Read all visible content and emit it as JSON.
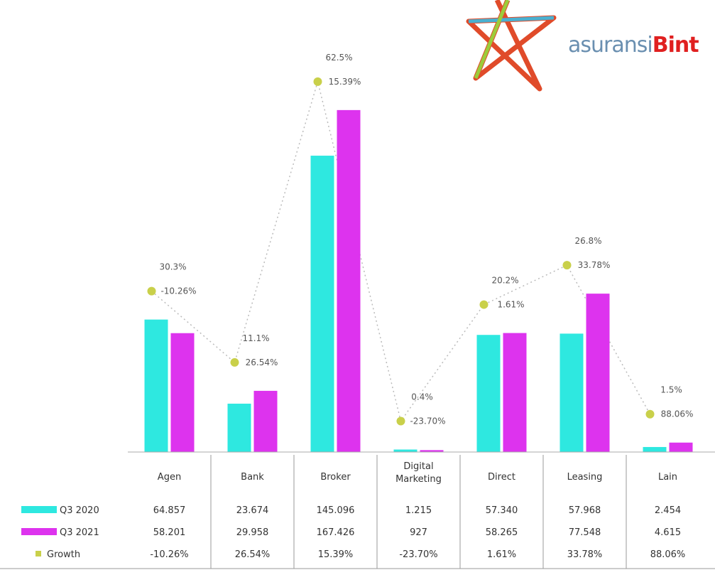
{
  "brand": {
    "logo_text_part1": "asuransi",
    "logo_text_part2": "Bint"
  },
  "chart_data": {
    "type": "bar",
    "title": "",
    "xlabel": "",
    "ylabel": "",
    "categories": [
      "Agen",
      "Bank",
      "Broker",
      "Digital Marketing",
      "Direct",
      "Leasing",
      "Lain"
    ],
    "series": [
      {
        "name": "Q3 2020",
        "color": "#2ee8e0",
        "display": [
          "64.857",
          "23.674",
          "145.096",
          "1.215",
          "57.340",
          "57.968",
          "2.454"
        ],
        "values": [
          64857,
          23674,
          145096,
          1215,
          57340,
          57968,
          2454
        ]
      },
      {
        "name": "Q3 2021",
        "color": "#dd33ee",
        "display": [
          "58.201",
          "29.958",
          "167.426",
          "927",
          "58.265",
          "77.548",
          "4.615"
        ],
        "values": [
          58201,
          29958,
          167426,
          927,
          58265,
          77548,
          4615
        ]
      },
      {
        "name": "Growth",
        "color": "#c9d04a",
        "display": [
          "-10.26%",
          "26.54%",
          "15.39%",
          "-23.70%",
          "1.61%",
          "33.78%",
          "88.06%"
        ],
        "values": [
          -10.26,
          26.54,
          15.39,
          -23.7,
          1.61,
          33.78,
          88.06
        ]
      }
    ],
    "annotations": [
      {
        "category": "Agen",
        "share": "30.3%",
        "growth": "-10.26%"
      },
      {
        "category": "Bank",
        "share": "11.1%",
        "growth": "26.54%"
      },
      {
        "category": "Broker",
        "share": "62.5%",
        "growth": "15.39%"
      },
      {
        "category": "Digital Marketing",
        "share": "0.4%",
        "growth": "-23.70%"
      },
      {
        "category": "Direct",
        "share": "20.2%",
        "growth": "1.61%"
      },
      {
        "category": "Leasing",
        "share": "26.8%",
        "growth": "33.78%"
      },
      {
        "category": "Lain",
        "share": "1.5%",
        "growth": "88.06%"
      }
    ],
    "ylim": [
      0,
      190000
    ],
    "grid": false,
    "legend": "table-left"
  }
}
